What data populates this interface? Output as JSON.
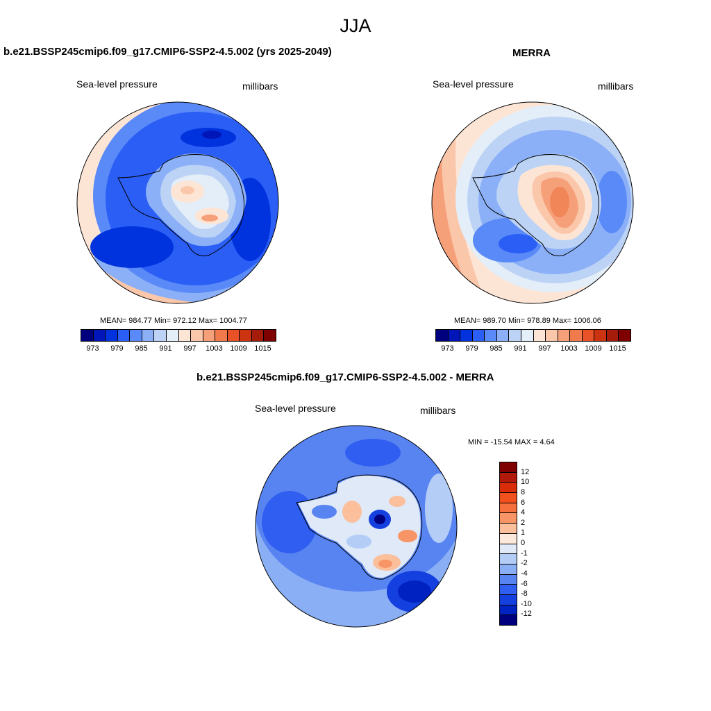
{
  "season": "JJA",
  "panels": {
    "model": {
      "title": "b.e21.BSSP245cmip6.f09_g17.CMIP6-SSP2-4.5.002 (yrs 2025-2049)",
      "variable": "Sea-level pressure",
      "units": "millibars",
      "stats": "MEAN= 984.77  Min= 972.12  Max= 1004.77"
    },
    "obs": {
      "title": "MERRA",
      "variable": "Sea-level pressure",
      "units": "millibars",
      "stats": "MEAN= 989.70  Min= 978.89  Max= 1006.06"
    },
    "diff": {
      "title": "b.e21.BSSP245cmip6.f09_g17.CMIP6-SSP2-4.5.002 - MERRA",
      "variable": "Sea-level pressure",
      "units": "millibars",
      "stats": "MIN = -15.54 MAX =   4.64"
    }
  },
  "colorbar_main": {
    "colors": [
      "#00007f",
      "#0016b8",
      "#0033dd",
      "#2a5ef5",
      "#5a8af7",
      "#8bb0f7",
      "#bcd3f6",
      "#e4eef8",
      "#fde5d6",
      "#fbc7aa",
      "#f6a07a",
      "#f07a4c",
      "#e85226",
      "#cc3311",
      "#a51d0a",
      "#7f0000"
    ],
    "labels": [
      "973",
      "979",
      "985",
      "991",
      "997",
      "1003",
      "1009",
      "1015"
    ]
  },
  "colorbar_diff": {
    "colors": [
      "#7f0000",
      "#b11a0a",
      "#d92d0a",
      "#f2501c",
      "#f6703e",
      "#f79566",
      "#fbbf9c",
      "#fde8dc",
      "#dfe9f8",
      "#b4cdf6",
      "#8aaff5",
      "#5884f2",
      "#2f5ef0",
      "#1540e0",
      "#0022c0",
      "#00007f"
    ],
    "labels": [
      "12",
      "10",
      "8",
      "6",
      "4",
      "2",
      "1",
      "0",
      "-1",
      "-2",
      "-4",
      "-6",
      "-8",
      "-10",
      "-12"
    ]
  }
}
